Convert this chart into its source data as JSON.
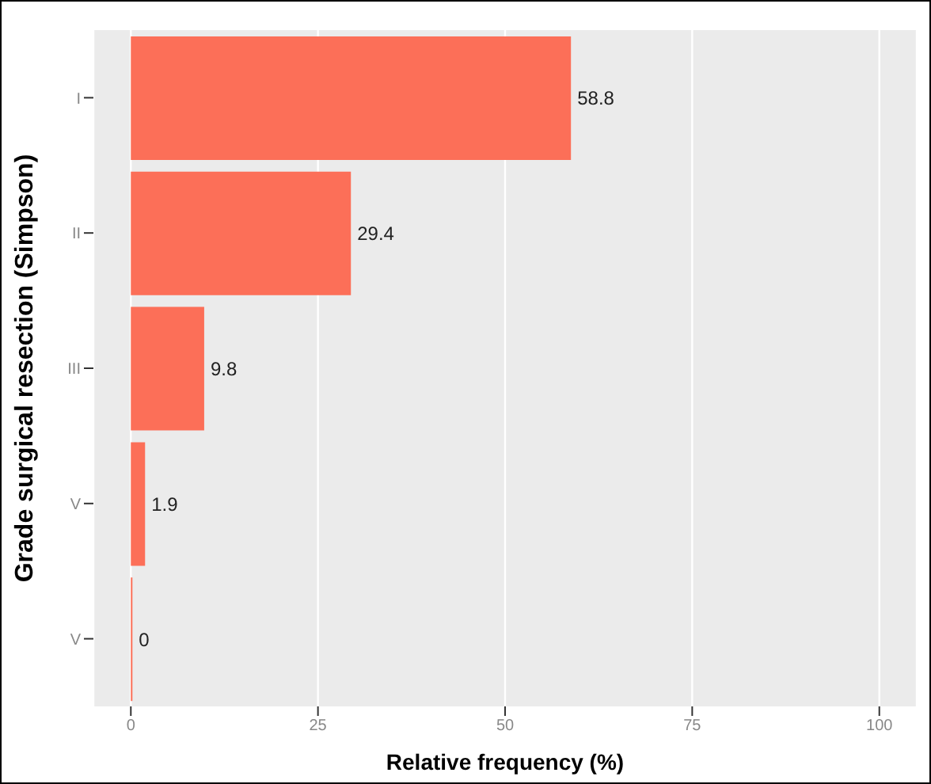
{
  "chart_data": {
    "type": "bar",
    "orientation": "horizontal",
    "xlabel": "Relative frequency (%)",
    "ylabel": "Grade surgical resection (Simpson)",
    "categories": [
      "I",
      "II",
      "III",
      "V",
      "V"
    ],
    "values": [
      58.8,
      29.4,
      9.8,
      1.9,
      0
    ],
    "color": "#fc6f58",
    "xlim": [
      -5,
      105
    ],
    "xticks": [
      0,
      25,
      50,
      75,
      100
    ],
    "grid": "x",
    "data_labels": true
  }
}
